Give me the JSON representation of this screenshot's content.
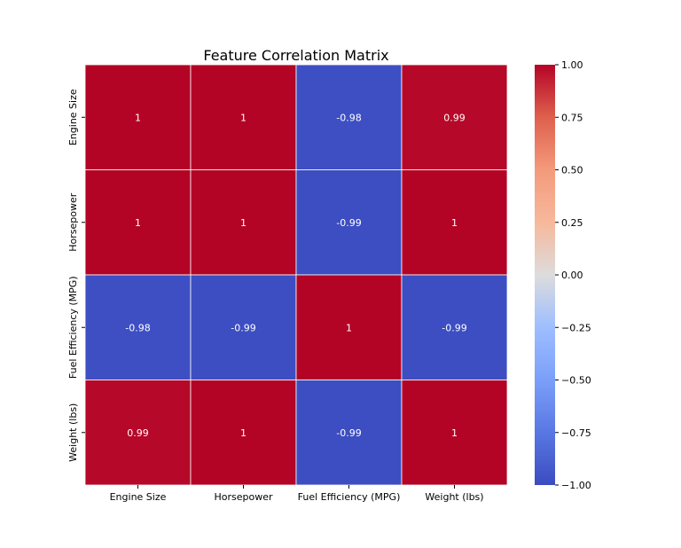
{
  "chart_data": {
    "type": "heatmap",
    "title": "Feature Correlation Matrix",
    "x_labels": [
      "Engine Size",
      "Horsepower",
      "Fuel Efficiency (MPG)",
      "Weight (lbs)"
    ],
    "y_labels": [
      "Engine Size",
      "Horsepower",
      "Fuel Efficiency (MPG)",
      "Weight (lbs)"
    ],
    "values": [
      [
        1,
        1,
        -0.98,
        0.99
      ],
      [
        1,
        1,
        -0.99,
        1
      ],
      [
        -0.98,
        -0.99,
        1,
        -0.99
      ],
      [
        0.99,
        1,
        -0.99,
        1
      ]
    ],
    "annotations": [
      [
        "1",
        "1",
        "-0.98",
        "0.99"
      ],
      [
        "1",
        "1",
        "-0.99",
        "1"
      ],
      [
        "-0.98",
        "-0.99",
        "1",
        "-0.99"
      ],
      [
        "0.99",
        "1",
        "-0.99",
        "1"
      ]
    ],
    "colormap": "coolwarm",
    "vmin": -1,
    "vmax": 1,
    "colorbar_ticks": [
      "1.00",
      "0.75",
      "0.50",
      "0.25",
      "0.00",
      "−0.25",
      "−0.50",
      "−0.75",
      "−1.00"
    ],
    "colors": {
      "high": "#b40426",
      "mid": "#dddddd",
      "low": "#3b4cc0"
    }
  }
}
